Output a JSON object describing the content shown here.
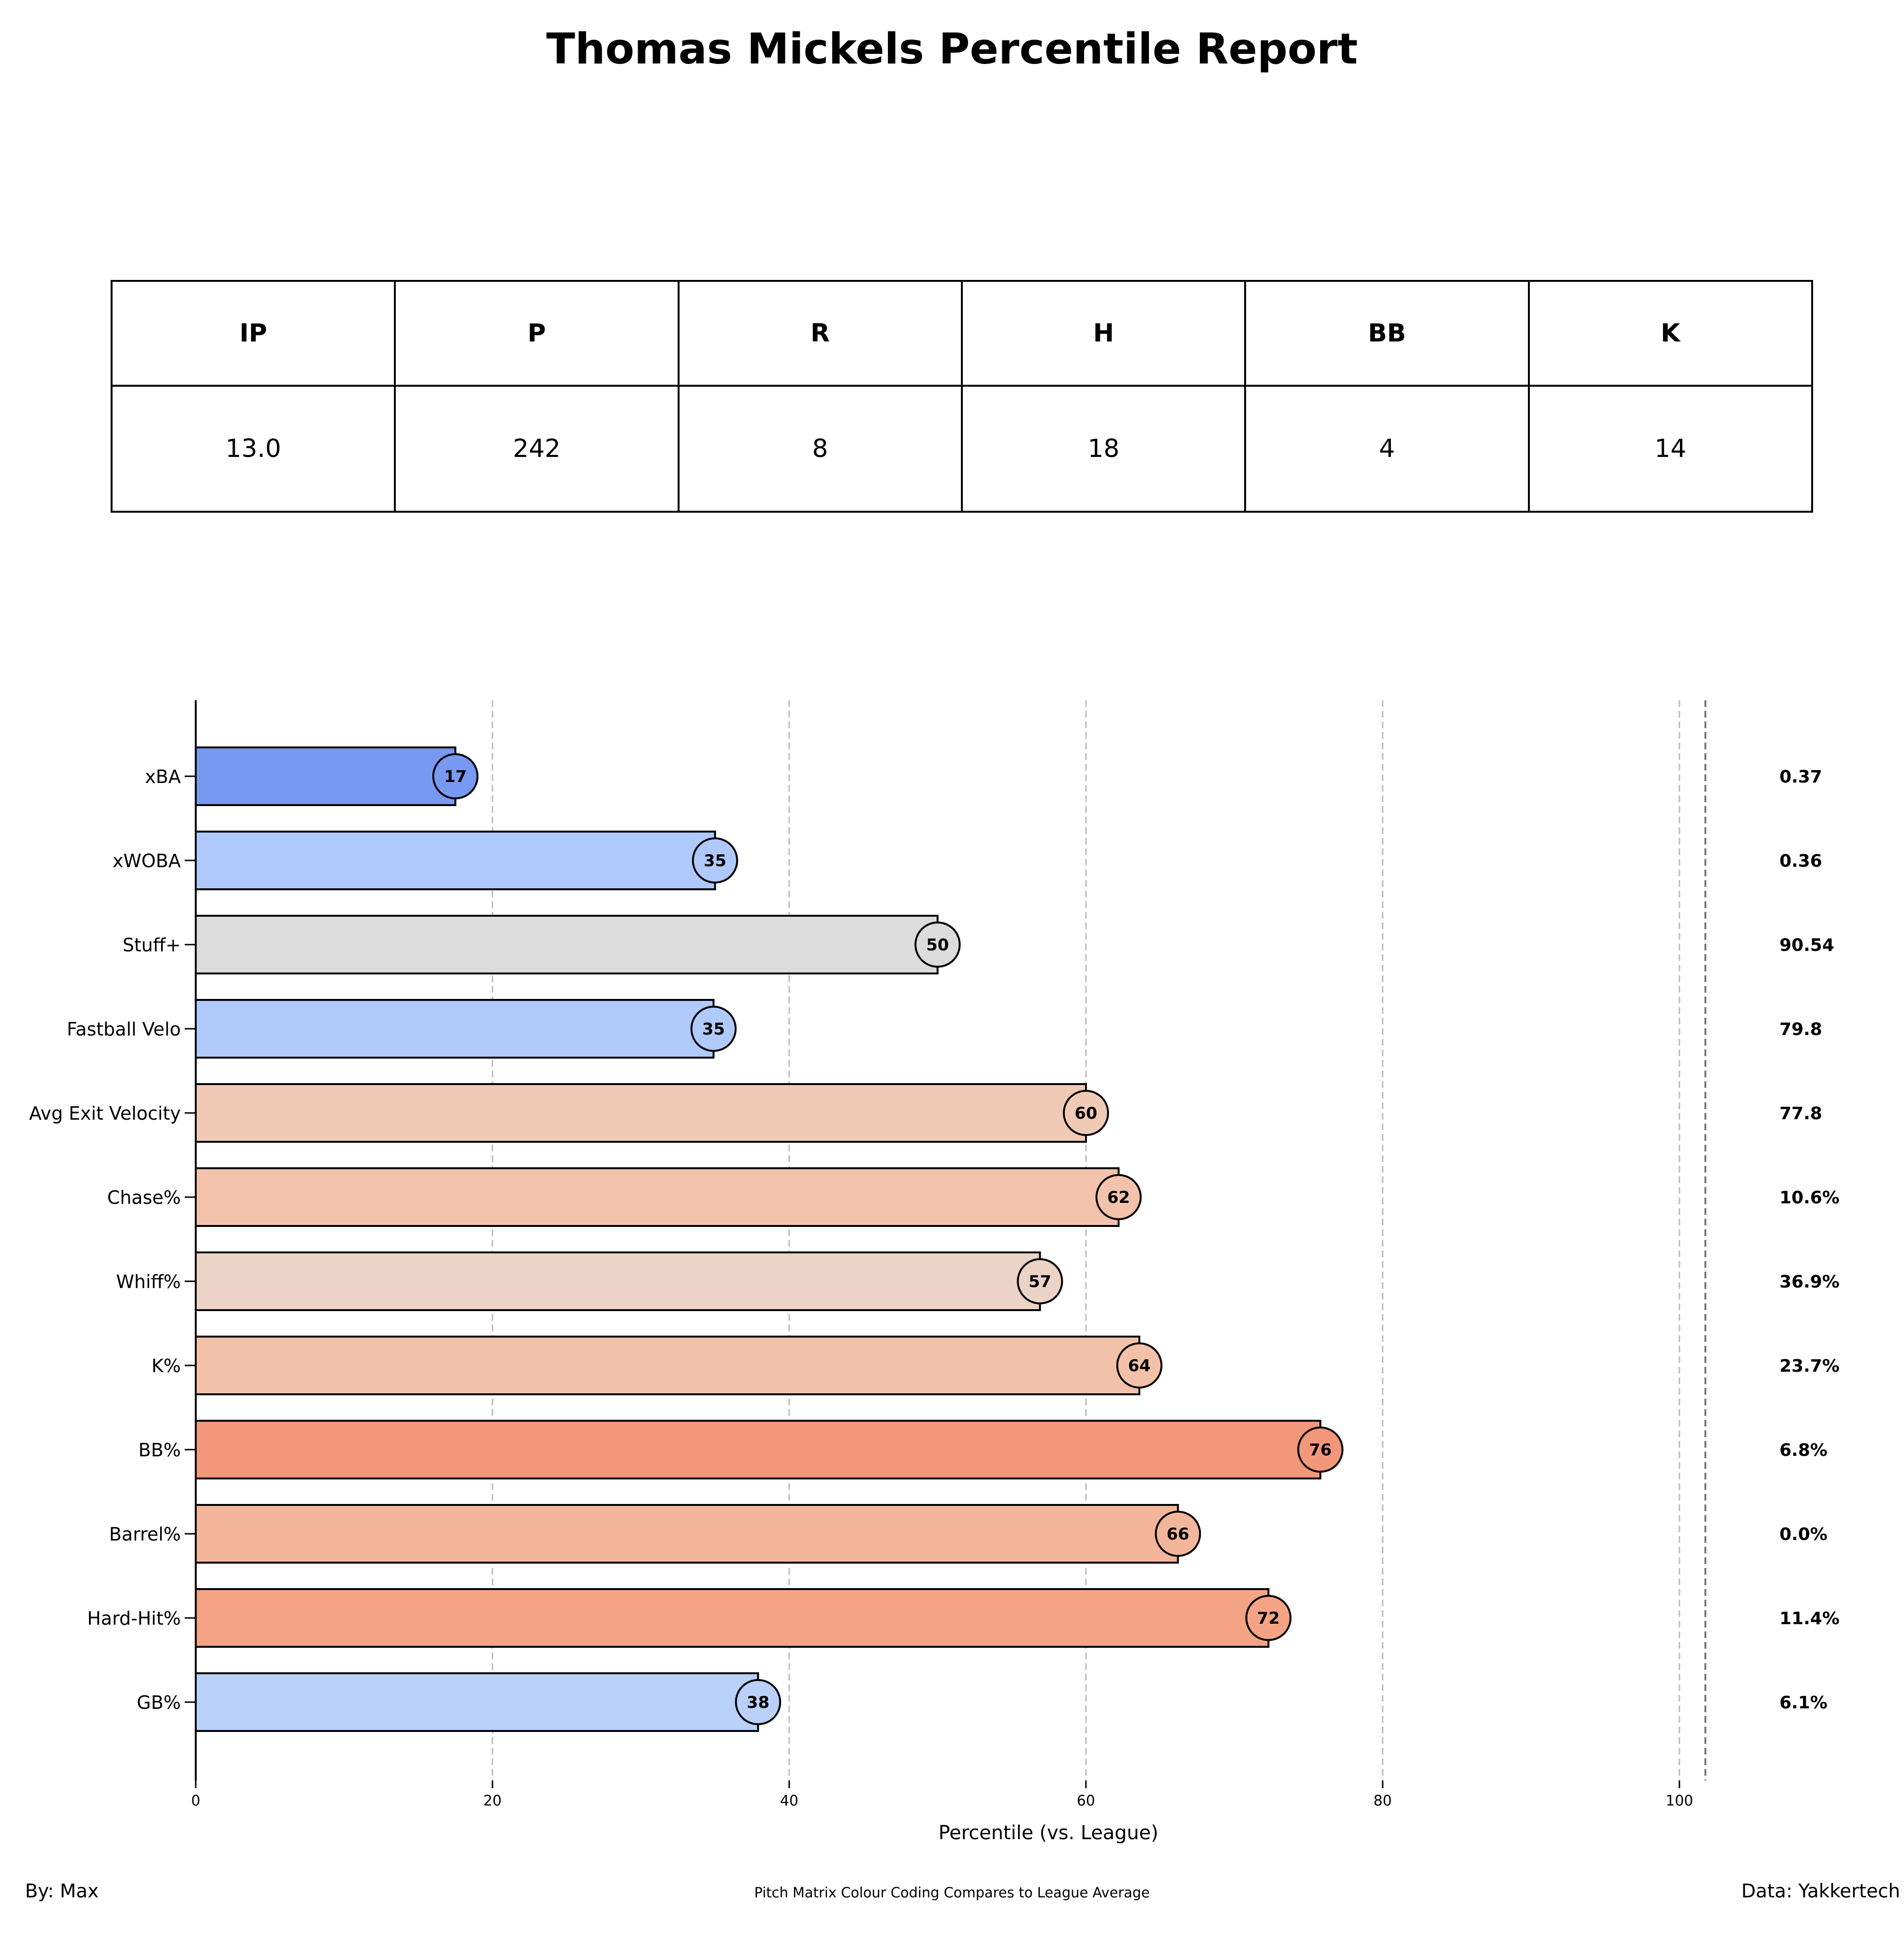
{
  "title": "Thomas Mickels Percentile Report",
  "stats_table": {
    "headers": [
      "IP",
      "P",
      "R",
      "H",
      "BB",
      "K"
    ],
    "values": [
      "13.0",
      "242",
      "8",
      "18",
      "4",
      "14"
    ]
  },
  "chart_data": {
    "type": "bar",
    "orientation": "horizontal",
    "xlabel": "Percentile (vs. League)",
    "xlim": [
      0,
      102
    ],
    "xticks": [
      0,
      20,
      40,
      60,
      80,
      100
    ],
    "grid": "vertical dashed",
    "categories": [
      "xBA",
      "xWOBA",
      "Stuff+",
      "Fastball Velo",
      "Avg Exit Velocity",
      "Chase%",
      "Whiff%",
      "K%",
      "BB%",
      "Barrel%",
      "Hard-Hit%",
      "GB%"
    ],
    "values": [
      17.5,
      35,
      50,
      34.9,
      60,
      62.2,
      56.9,
      63.6,
      75.8,
      66.2,
      72.3,
      37.9
    ],
    "value_labels": [
      "17",
      "35",
      "50",
      "35",
      "60",
      "62",
      "57",
      "64",
      "76",
      "66",
      "72",
      "38"
    ],
    "raw_values": [
      "0.37",
      "0.36",
      "90.54",
      "79.8",
      "77.8",
      "10.6%",
      "36.9%",
      "23.7%",
      "6.8%",
      "0.0%",
      "11.4%",
      "6.1%"
    ],
    "colors": [
      "#7799f2",
      "#afc9fc",
      "#dcdcdc",
      "#b0cafc",
      "#f1cab6",
      "#f2c3aa",
      "#ebd3c6",
      "#f3c1a9",
      "#f3977a",
      "#f4b69a",
      "#f4a385",
      "#b9d0f9"
    ]
  },
  "footer": {
    "left": "By: Max",
    "center": "Pitch Matrix Colour Coding Compares to League Average",
    "right": "Data: Yakkertech"
  }
}
